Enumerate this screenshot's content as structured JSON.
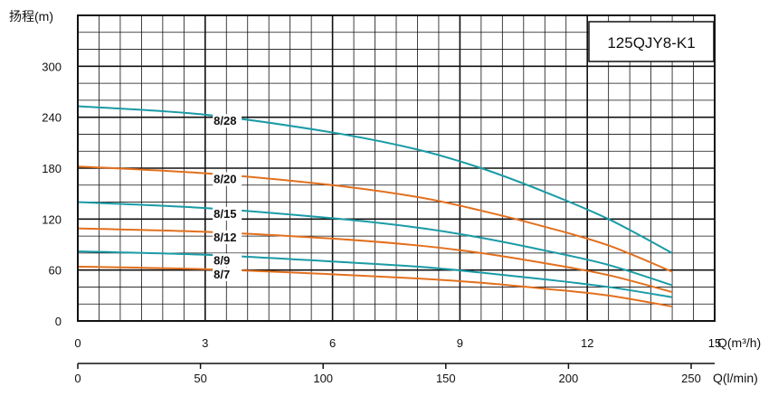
{
  "chart_data": {
    "type": "line",
    "title": "125QJY8-K1",
    "ylabel": "扬程(m)",
    "xlabel": "Q(m³/h)",
    "xlabel2": "Q(l/min)",
    "ylim": [
      0,
      360
    ],
    "xlim": [
      0,
      15
    ],
    "y_ticks": [
      "0",
      "60",
      "120",
      "180",
      "240",
      "300"
    ],
    "x_ticks": [
      "0",
      "3",
      "6",
      "9",
      "12",
      "15"
    ],
    "x2_ticks": [
      "0",
      "50",
      "100",
      "150",
      "200",
      "250"
    ],
    "grid": true,
    "colors": {
      "teal": "#1a9ba6",
      "orange": "#e2701e",
      "grid": "#111111",
      "box": "#ffffff"
    },
    "series": [
      {
        "name": "8/28",
        "color": "teal",
        "x": [
          0,
          3,
          6,
          8,
          9.5,
          11,
          12.5,
          14
        ],
        "y": [
          253,
          243,
          222,
          202,
          180,
          152,
          120,
          80
        ]
      },
      {
        "name": "8/20",
        "color": "orange",
        "x": [
          0,
          3,
          6,
          8,
          9.5,
          11,
          12.5,
          14
        ],
        "y": [
          182,
          174,
          160,
          146,
          130,
          111,
          89,
          58
        ]
      },
      {
        "name": "8/15",
        "color": "teal",
        "x": [
          0,
          3,
          6,
          8,
          9.5,
          11,
          12.5,
          14
        ],
        "y": [
          140,
          133,
          121,
          110,
          98,
          83,
          66,
          42
        ]
      },
      {
        "name": "8/12",
        "color": "orange",
        "x": [
          0,
          3,
          6,
          8,
          9.5,
          11,
          12.5,
          14
        ],
        "y": [
          109,
          105,
          97,
          89,
          80,
          68,
          54,
          34
        ]
      },
      {
        "name": "8/9",
        "color": "teal",
        "x": [
          0,
          3,
          6,
          8,
          9.5,
          11,
          12.5,
          14
        ],
        "y": [
          82,
          78,
          70,
          64,
          57,
          49,
          40,
          28
        ]
      },
      {
        "name": "8/7",
        "color": "orange",
        "x": [
          0,
          3,
          6,
          8,
          9.5,
          11,
          12.5,
          14
        ],
        "y": [
          64,
          61,
          55,
          50,
          45,
          38,
          30,
          17
        ]
      }
    ]
  }
}
